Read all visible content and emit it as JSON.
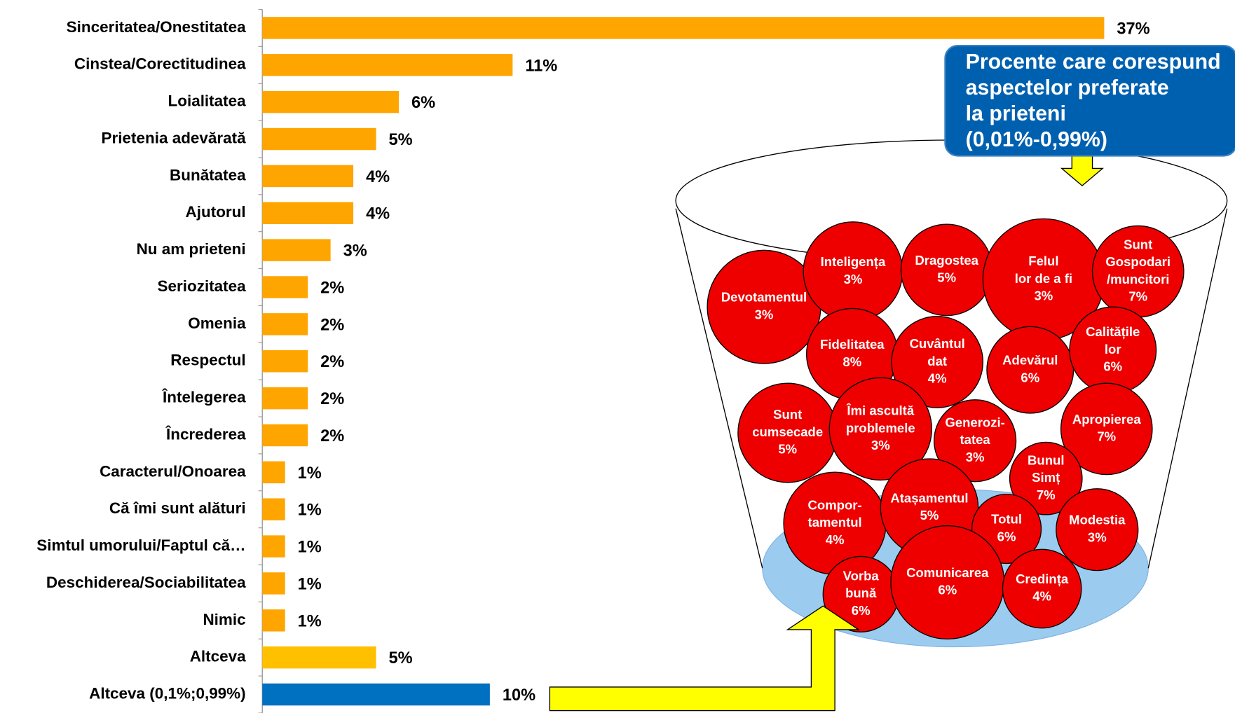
{
  "chart_data": {
    "type": "bar",
    "orientation": "horizontal",
    "categories": [
      "Sinceritatea/Onestitatea",
      "Cinstea/Corectitudinea",
      "Loialitatea",
      "Prietenia adevărată",
      "Bunătatea",
      "Ajutorul",
      "Nu am prieteni",
      "Seriozitatea",
      "Omenia",
      "Respectul",
      "Întelegerea",
      "Încrederea",
      "Caracterul/Onoarea",
      "Că îmi sunt alături",
      "Simtul umorului/Faptul că…",
      "Deschiderea/Sociabilitatea",
      "Nimic",
      "Altceva",
      "Altceva (0,1%;0,99%)"
    ],
    "values": [
      37,
      11,
      6,
      5,
      4,
      4,
      3,
      2,
      2,
      2,
      2,
      2,
      1,
      1,
      1,
      1,
      1,
      5,
      10
    ],
    "value_labels": [
      "37%",
      "11%",
      "6%",
      "5%",
      "4%",
      "4%",
      "3%",
      "2%",
      "2%",
      "2%",
      "2%",
      "2%",
      "1%",
      "1%",
      "1%",
      "1%",
      "1%",
      "5%",
      "10%"
    ],
    "colors": [
      "#ffa500",
      "#ffa500",
      "#ffa500",
      "#ffa500",
      "#ffa500",
      "#ffa500",
      "#ffa500",
      "#ffa500",
      "#ffa500",
      "#ffa500",
      "#ffa500",
      "#ffa500",
      "#ffa500",
      "#ffa500",
      "#ffa500",
      "#ffa500",
      "#ffa500",
      "#ffc000",
      "#0070c0"
    ],
    "xlim": [
      0,
      37
    ],
    "callout": [
      "Procente care corespund",
      "aspectelor preferate",
      "la prieteni",
      " (0,01%-0,99%)"
    ],
    "bubbles": {
      "color": "#ee0000",
      "labels": [
        [
          "Devotamentul"
        ],
        [
          "Inteligența"
        ],
        [
          "Dragostea"
        ],
        [
          "Felul",
          "lor de a fi"
        ],
        [
          "Sunt",
          "Gospodari",
          "/muncitori"
        ],
        [
          "Fidelitatea"
        ],
        [
          "Cuvântul",
          "dat"
        ],
        [
          "Adevărul"
        ],
        [
          "Calitățile",
          "lor"
        ],
        [
          "Sunt",
          "cumsecade"
        ],
        [
          "Îmi ascultă",
          "problemele"
        ],
        [
          "Generozi-",
          "tatea"
        ],
        [
          "Apropierea"
        ],
        [
          "Bunul",
          "Simț"
        ],
        [
          "Compor-",
          "tamentul"
        ],
        [
          "Atașamentul"
        ],
        [
          "Totul"
        ],
        [
          "Modestia"
        ],
        [
          "Vorba",
          "bună"
        ],
        [
          "Comunicarea"
        ],
        [
          "Credința"
        ]
      ],
      "values": [
        3,
        3,
        5,
        3,
        7,
        8,
        4,
        6,
        6,
        5,
        3,
        3,
        7,
        7,
        4,
        5,
        6,
        3,
        6,
        6,
        4
      ],
      "value_labels": [
        "3%",
        "3%",
        "5%",
        "3%",
        "7%",
        "8%",
        "4%",
        "6%",
        "6%",
        "5%",
        "3%",
        "3%",
        "7%",
        "7%",
        "4%",
        "5%",
        "6%",
        "3%",
        "6%",
        "6%",
        "4%"
      ]
    }
  }
}
